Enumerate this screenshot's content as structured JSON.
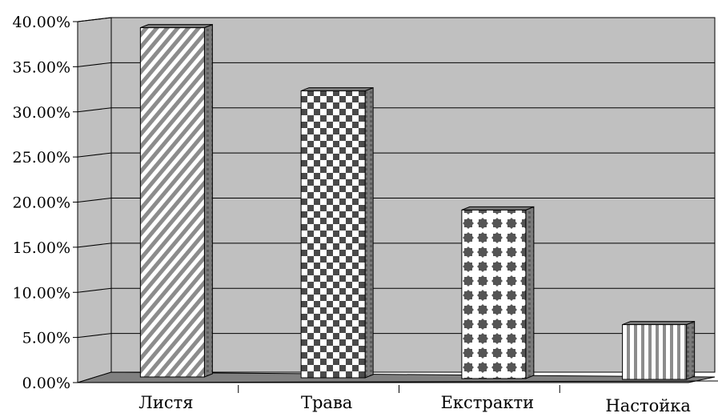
{
  "chart_data": {
    "type": "bar",
    "style": "3d-column",
    "categories": [
      "Листя",
      "Трава",
      "Екстракти",
      "Настойка"
    ],
    "values": [
      39.5,
      32.5,
      19.3,
      6.6
    ],
    "ylim": [
      0,
      40
    ],
    "y_ticks": [
      "0.00%",
      "5.00%",
      "10.00%",
      "15.00%",
      "20.00%",
      "25.00%",
      "30.00%",
      "35.00%",
      "40.00%"
    ],
    "title": "",
    "xlabel": "",
    "ylabel": "",
    "grid": true,
    "legend": "none",
    "bar_patterns": [
      "diagonal-stripes",
      "checkerboard",
      "dotted-cross",
      "vertical-stripes"
    ],
    "colors": {
      "wall": "#c0c0c0",
      "floor": "#808080",
      "gridline": "#000000",
      "pattern_dark": "#666666",
      "pattern_light": "#ffffff",
      "bar_side": "#7a7a7a"
    }
  }
}
